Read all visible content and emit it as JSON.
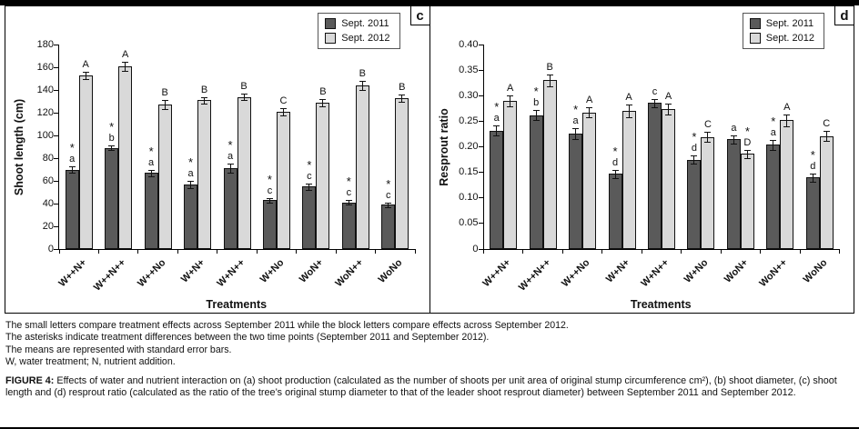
{
  "colors": {
    "sept2011": "#5a5a5a",
    "sept2012": "#d9d9d9",
    "error_bar": "#111111"
  },
  "legend": {
    "items": [
      "Sept. 2011",
      "Sept. 2012"
    ]
  },
  "chart_data": [
    {
      "type": "bar",
      "panel_label": "c",
      "ylabel": "Shoot length (cm)",
      "xlabel": "Treatments",
      "ylim": [
        0,
        180
      ],
      "grid": false,
      "legend_position": "top-right",
      "yticks": [
        {
          "value": 0,
          "label": "0"
        },
        {
          "value": 20,
          "label": "20"
        },
        {
          "value": 40,
          "label": "40"
        },
        {
          "value": 60,
          "label": "60"
        },
        {
          "value": 80,
          "label": "80"
        },
        {
          "value": 100,
          "label": "100"
        },
        {
          "value": 120,
          "label": "120"
        },
        {
          "value": 140,
          "label": "140"
        },
        {
          "value": 160,
          "label": "160"
        },
        {
          "value": 180,
          "label": "180"
        }
      ],
      "categories": [
        "W++N+",
        "W++N++",
        "W++No",
        "W+N+",
        "W+N++",
        "W+No",
        "WoN+",
        "WoN++",
        "WoNo"
      ],
      "series": [
        {
          "name": "Sept. 2011",
          "values": [
            70,
            89,
            67,
            57,
            71,
            43,
            55,
            41,
            39
          ],
          "errors": [
            3,
            2,
            3,
            3,
            4,
            2,
            3,
            2,
            2
          ],
          "letters": [
            "a",
            "b",
            "a",
            "a",
            "a",
            "c",
            "c",
            "c",
            "c"
          ],
          "asterisks": [
            true,
            true,
            true,
            true,
            true,
            true,
            true,
            true,
            true
          ]
        },
        {
          "name": "Sept. 2012",
          "values": [
            153,
            161,
            127,
            131,
            134,
            121,
            129,
            144,
            133
          ],
          "errors": [
            3,
            4,
            4,
            3,
            3,
            3,
            3,
            4,
            3
          ],
          "letters": [
            "A",
            "A",
            "B",
            "B",
            "B",
            "C",
            "B",
            "B",
            "B"
          ],
          "asterisks": [
            false,
            false,
            false,
            false,
            false,
            false,
            false,
            false,
            false
          ]
        }
      ]
    },
    {
      "type": "bar",
      "panel_label": "d",
      "ylabel": "Resprout ratio",
      "xlabel": "Treatments",
      "ylim": [
        0,
        0.4
      ],
      "grid": false,
      "legend_position": "top-right",
      "yticks": [
        {
          "value": 0,
          "label": "0"
        },
        {
          "value": 0.05,
          "label": "0.05"
        },
        {
          "value": 0.1,
          "label": "0.10"
        },
        {
          "value": 0.15,
          "label": "0.15"
        },
        {
          "value": 0.2,
          "label": "0.20"
        },
        {
          "value": 0.25,
          "label": "0.25"
        },
        {
          "value": 0.3,
          "label": "0.30"
        },
        {
          "value": 0.35,
          "label": "0.35"
        },
        {
          "value": 0.4,
          "label": "0.40"
        }
      ],
      "categories": [
        "W++N+",
        "W++N++",
        "W++No",
        "W+N+",
        "W+N++",
        "W+No",
        "WoN+",
        "WoN++",
        "WoNo"
      ],
      "series": [
        {
          "name": "Sept. 2011",
          "values": [
            0.232,
            0.262,
            0.226,
            0.147,
            0.286,
            0.175,
            0.215,
            0.204,
            0.14
          ],
          "errors": [
            0.01,
            0.01,
            0.01,
            0.008,
            0.008,
            0.008,
            0.008,
            0.01,
            0.008
          ],
          "letters": [
            "a",
            "b",
            "a",
            "d",
            "c",
            "d",
            "a",
            "a",
            "d"
          ],
          "asterisks": [
            true,
            true,
            true,
            true,
            false,
            true,
            false,
            true,
            true
          ]
        },
        {
          "name": "Sept. 2012",
          "values": [
            0.29,
            0.33,
            0.267,
            0.27,
            0.274,
            0.219,
            0.186,
            0.252,
            0.221
          ],
          "errors": [
            0.01,
            0.012,
            0.01,
            0.012,
            0.01,
            0.01,
            0.008,
            0.012,
            0.01
          ],
          "letters": [
            "A",
            "B",
            "A",
            "A",
            "A",
            "C",
            "D",
            "A",
            "C"
          ],
          "asterisks": [
            false,
            false,
            false,
            false,
            false,
            false,
            true,
            false,
            false
          ]
        }
      ]
    }
  ],
  "page": {
    "notes": [
      "The small letters compare treatment effects across September 2011 while the block letters compare effects across September 2012.",
      "The asterisks indicate treatment differences between the two time points (September 2011 and September 2012).",
      "The means are represented with standard error bars.",
      "W, water treatment; N, nutrient addition."
    ],
    "figure_caption_label": "FIGURE 4:",
    "figure_caption_text": "Effects of water and nutrient interaction on (a) shoot production (calculated as the number of shoots per unit area of original stump circumference cm²), (b) shoot diameter, (c) shoot length and (d) resprout ratio (calculated as the ratio of the tree’s original stump diameter to that of the leader shoot resprout diameter) between September 2011 and September 2012."
  }
}
